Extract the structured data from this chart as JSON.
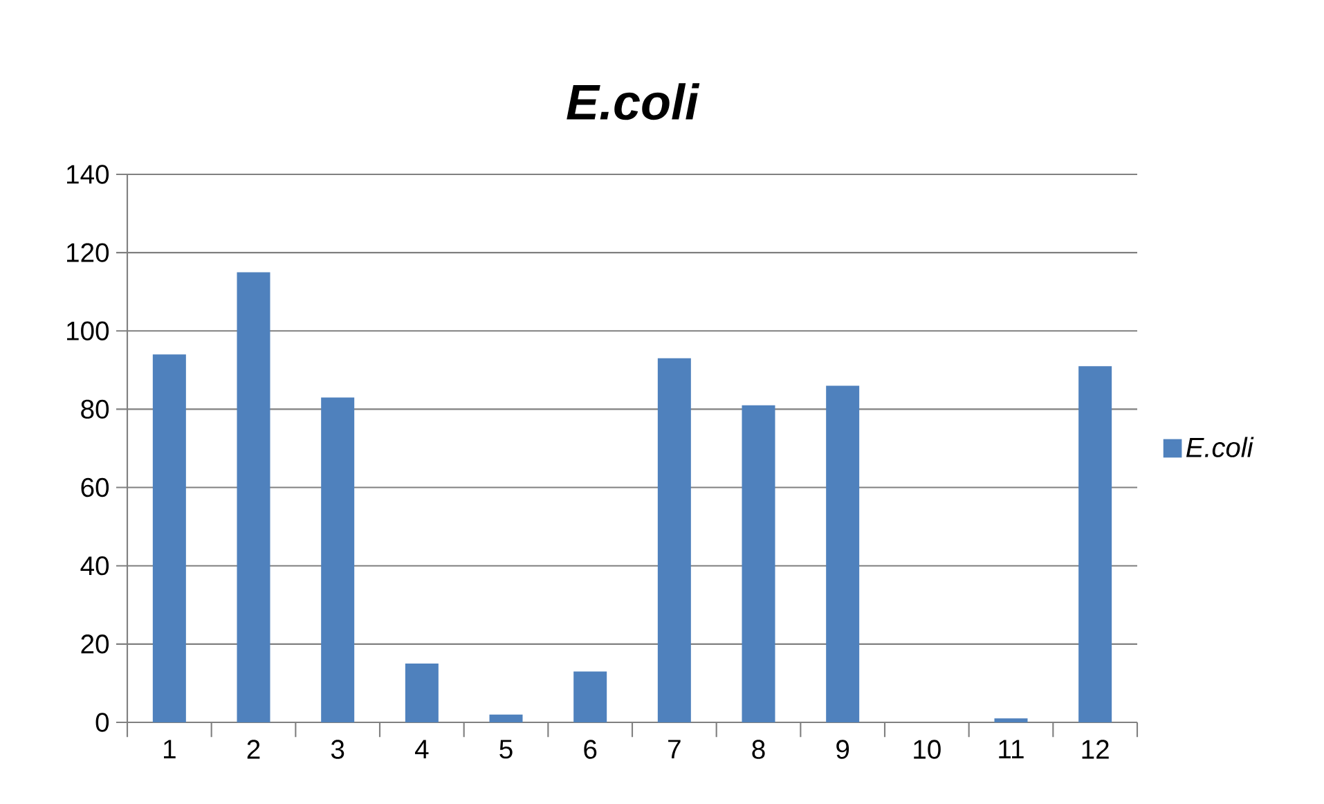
{
  "chart_data": {
    "type": "bar",
    "title": "E.coli",
    "categories": [
      "1",
      "2",
      "3",
      "4",
      "5",
      "6",
      "7",
      "8",
      "9",
      "10",
      "11",
      "12"
    ],
    "series": [
      {
        "name": "E.coli",
        "color": "#4f81bd",
        "values": [
          94,
          115,
          83,
          15,
          2,
          13,
          93,
          81,
          86,
          0,
          1,
          91
        ]
      }
    ],
    "ylim": [
      0,
      140
    ],
    "yticks": [
      0,
      20,
      40,
      60,
      80,
      100,
      120,
      140
    ],
    "grid": "y",
    "legend": "right"
  }
}
